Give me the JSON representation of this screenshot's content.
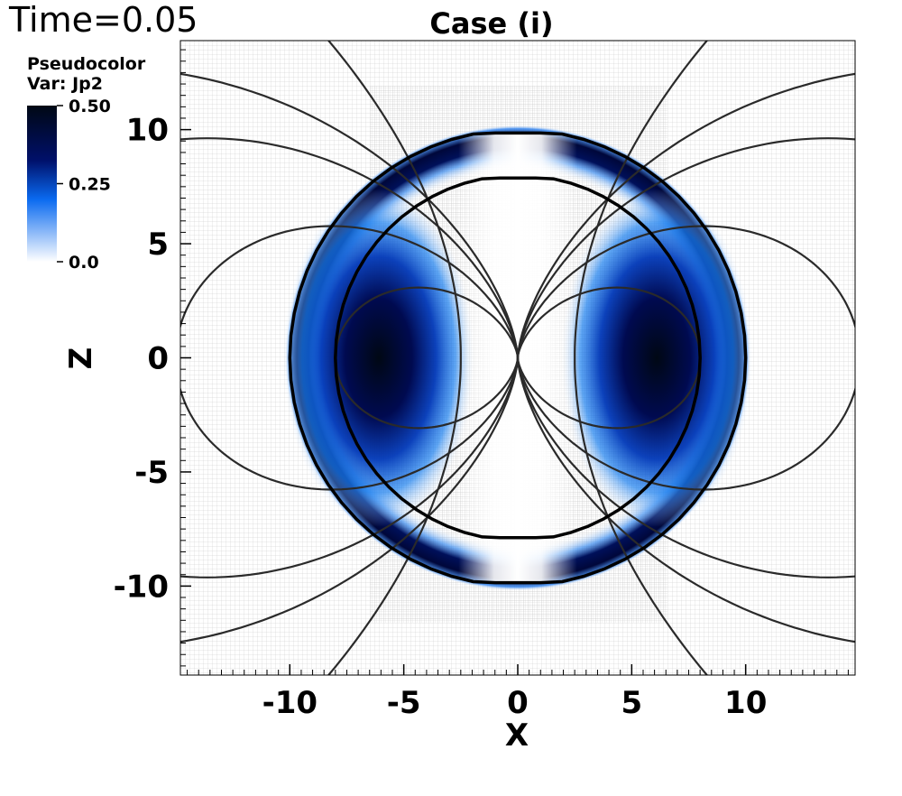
{
  "time_label": "Time=0.05",
  "legend": {
    "title_line1": "Pseudocolor",
    "title_line2": "Var: Jp2",
    "ticks": [
      "0.50",
      "0.25",
      "0.0"
    ],
    "colors": [
      "#000814",
      "#00106a",
      "#0a6af0",
      "#ffffff"
    ]
  },
  "chart_data": {
    "type": "heatmap",
    "title": "Case (i)",
    "xlabel": "X",
    "ylabel": "Z",
    "xlim": [
      -14.8,
      14.8
    ],
    "ylim": [
      -13.9,
      13.9
    ],
    "x_ticks": [
      -10,
      -5,
      0,
      5,
      10
    ],
    "y_ticks": [
      -10,
      -5,
      0,
      5,
      10
    ],
    "x_tick_labels": [
      "-10",
      "-5",
      "0",
      "5",
      "10"
    ],
    "y_tick_labels": [
      "-10",
      "-5",
      "0",
      "5",
      "10"
    ],
    "colorbar": {
      "min": 0.0,
      "max": 0.5,
      "variable": "Jp2"
    },
    "structures": {
      "outer_boundary_radius": 10,
      "inner_boundary_radius": 8,
      "shell_peak_radius": 8.5,
      "interior_lobe_center_x": 6.1,
      "interior_lobe_peak": 0.5
    },
    "field_lines": {
      "loop_params": [
        0.8,
        1.5,
        2.5,
        3.3
      ],
      "lines_from_origin_x": [
        -2.5,
        2.5
      ]
    }
  }
}
